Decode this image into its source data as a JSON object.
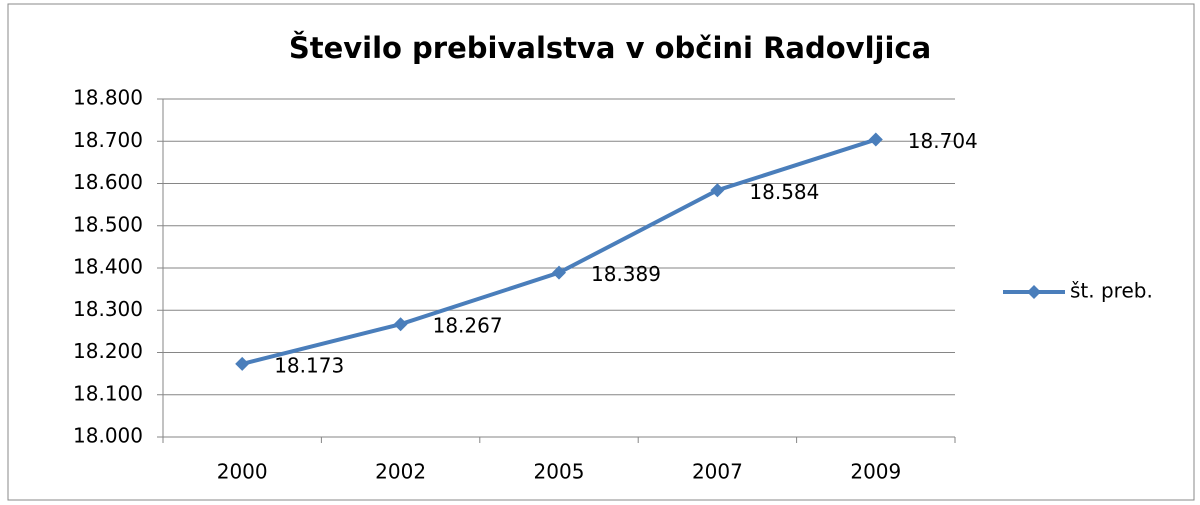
{
  "chart_data": {
    "type": "line",
    "title": "Število prebivalstva v občini Radovljica",
    "categories": [
      "2000",
      "2002",
      "2005",
      "2007",
      "2009"
    ],
    "series": [
      {
        "name": "št. preb.",
        "color": "#4a7ebb",
        "values": [
          18173,
          18267,
          18389,
          18584,
          18704
        ],
        "value_labels": [
          "18.173",
          "18.267",
          "18.389",
          "18.584",
          "18.704"
        ]
      }
    ],
    "ylim": [
      18000,
      18800
    ],
    "yticks": [
      {
        "value": 18000,
        "label": "18.000"
      },
      {
        "value": 18100,
        "label": "18.100"
      },
      {
        "value": 18200,
        "label": "18.200"
      },
      {
        "value": 18300,
        "label": "18.300"
      },
      {
        "value": 18400,
        "label": "18.400"
      },
      {
        "value": 18500,
        "label": "18.500"
      },
      {
        "value": 18600,
        "label": "18.600"
      },
      {
        "value": 18700,
        "label": "18.700"
      },
      {
        "value": 18800,
        "label": "18.800"
      }
    ],
    "grid": true,
    "legend": "right"
  }
}
